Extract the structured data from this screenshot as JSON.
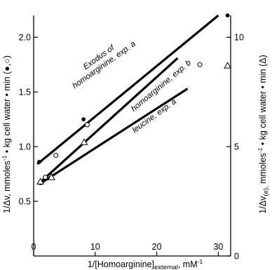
{
  "chart_data": {
    "type": "scatter",
    "title": "",
    "xlabel": {
      "pre": "1/[Homoarginine]",
      "sub": "external",
      "post": ",",
      "unit": "mM",
      "unit_sup": "-1"
    },
    "ylabel_left": {
      "pre": "1/Δv, mmoles",
      "sup": "-1",
      "post": " • kg cell water • min (●,○)"
    },
    "ylabel_right": {
      "pre": "1/Δv",
      "sub": "(e),",
      "post": " mmoles",
      "sup": "-1",
      "post2": " • kg cell water • min (Δ)"
    },
    "xlim": [
      0,
      32
    ],
    "ylim_left": [
      0,
      2.2
    ],
    "ylim_right": [
      0,
      11
    ],
    "x_ticks": [
      0,
      10,
      20,
      30
    ],
    "x_tick_labels": [
      "0",
      "10",
      "20",
      "30"
    ],
    "y_left_ticks": [
      0.5,
      1.0,
      1.5,
      2.0
    ],
    "y_left_tick_labels": [
      "0.5",
      "1.0",
      "1.5",
      "2.0"
    ],
    "y_right_ticks": [
      0,
      5,
      10
    ],
    "y_right_tick_labels": [
      "0",
      "5",
      "10"
    ],
    "grid": false,
    "series": [
      {
        "marker": "filled-circle",
        "axis": "left",
        "points": [
          [
            0.9,
            0.86
          ],
          [
            8.1,
            1.25
          ],
          [
            31.5,
            2.2
          ]
        ],
        "line": [
          [
            0.6,
            0.84
          ],
          [
            30,
            2.2
          ]
        ],
        "annotation": [
          "Exodus of",
          "homoarginine, exp. a"
        ]
      },
      {
        "marker": "open-circle",
        "axis": "left",
        "points": [
          [
            1.1,
            0.67
          ],
          [
            1.9,
            0.72
          ],
          [
            3.6,
            0.92
          ],
          [
            8.7,
            1.2
          ],
          [
            27,
            1.75
          ]
        ],
        "line": [
          [
            1.0,
            0.67
          ],
          [
            23.4,
            1.81
          ]
        ],
        "annotation": [
          "homoarginine, exp. b"
        ]
      },
      {
        "marker": "open-triangle",
        "axis": "right",
        "points": [
          [
            1.1,
            3.4
          ],
          [
            2.9,
            3.6
          ],
          [
            8.2,
            5.2
          ],
          [
            31.5,
            8.7
          ]
        ],
        "line": [
          [
            1.0,
            3.3
          ],
          [
            25,
            7.65
          ]
        ],
        "annotation": [
          "leucine, exp. a"
        ]
      }
    ]
  }
}
